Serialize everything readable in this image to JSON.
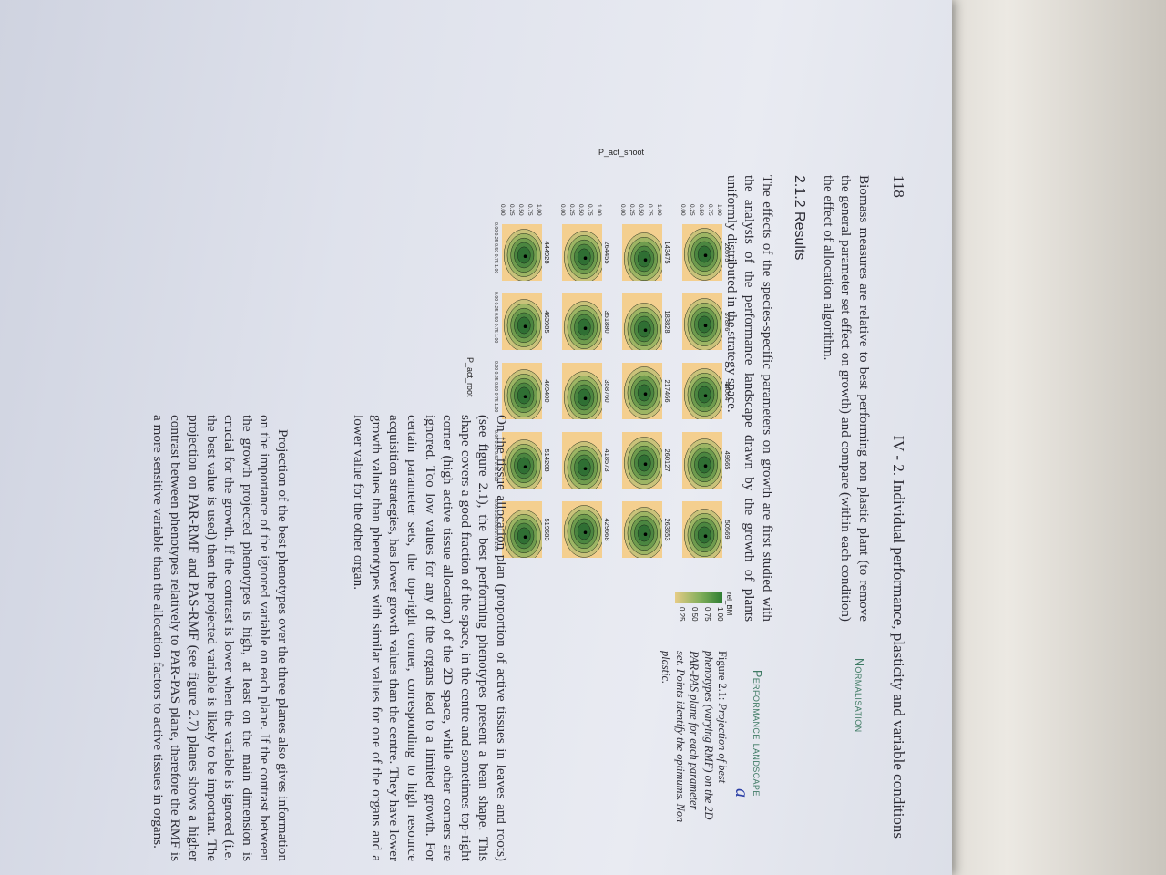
{
  "header": {
    "page_number": "118",
    "chapter_title": "IV - 2. Individual performance, plasticity and variable conditions"
  },
  "text": {
    "para1": "Biomass measures are relative to best performing non plastic plant (to remove the general parameter set effect on growth) and compare (within each condition) the effect of allocation algorithm.",
    "section_heading": "2.1.2 Results",
    "para2": "The effects of the species-specific parameters on growth are first studied with the analysis of the performance landscape drawn by the growth of plants uniformly distributed in the strategy space.",
    "para3": "On the tissue allocation plan (proportion of active tissues in leaves and roots) (see figure 2.1), the best performing phenotypes present a bean shape. This shape covers a good fraction of the space, in the centre and sometimes top-right corner (high active tissue allocation) of the 2D space, while other corners are ignored. Too low values for any of the organs lead to a limited growth. For certain parameter sets, the top-right corner, corresponding to high resource acquisition strategies, has lower growth values than the centre. They have lower growth values than phenotypes with similar values for one of the organs and a lower value for the other organ.",
    "para4": "Projection of the best phenotypes over the three planes also gives information on the importance of the ignored variable on each plane. If the contrast between the growth projected phenotypes is high, at least on the main dimension is crucial for the growth. If the contrast is lower when the variable is ignored (i.e. the best value is used) then the projected variable is likely to be important. The projection on PAR-RMF and PAS-RMF (see figure 2.7) planes shows a higher contrast between phenotypes relatively to PAR-PAS plane, therefore the RMF is a more sensitive variable than the allocation factors to active tissues in organs."
  },
  "margin_notes": {
    "note1": "Normalisation",
    "note2": "Performance landscape"
  },
  "caption": {
    "label": "Figure 2.1:",
    "text": " Projection of best phenotypes (varying RMF) on the 2D PAR-PAS plane for each parameter set. Points identify the optimums. Non plastic.",
    "pen_mark": "a"
  },
  "chart_data": {
    "type": "heatmap",
    "title": "",
    "xlabel": "P_act_root",
    "ylabel": "P_act_shoot",
    "legend_title": "rel_BM",
    "legend_ticks": [
      "1.00",
      "0.75",
      "0.50",
      "0.25"
    ],
    "axis_ticks": [
      "0.00",
      "0.25",
      "0.50",
      "0.75",
      "1.00"
    ],
    "xlim": [
      0,
      1
    ],
    "ylim": [
      0,
      1
    ],
    "panels": [
      [
        "20575",
        "37876",
        "44064",
        "49665",
        "50569"
      ],
      [
        "143475",
        "183828",
        "217466",
        "260127",
        "263653"
      ],
      [
        "264455",
        "351880",
        "358760",
        "418573",
        "429668"
      ],
      [
        "444928",
        "463985",
        "469400",
        "514208",
        "519683"
      ]
    ]
  },
  "colors": {
    "panel_background": "#f4cf8f",
    "high_performance": "#2e7d32",
    "margin_note": "#3e7a63"
  }
}
